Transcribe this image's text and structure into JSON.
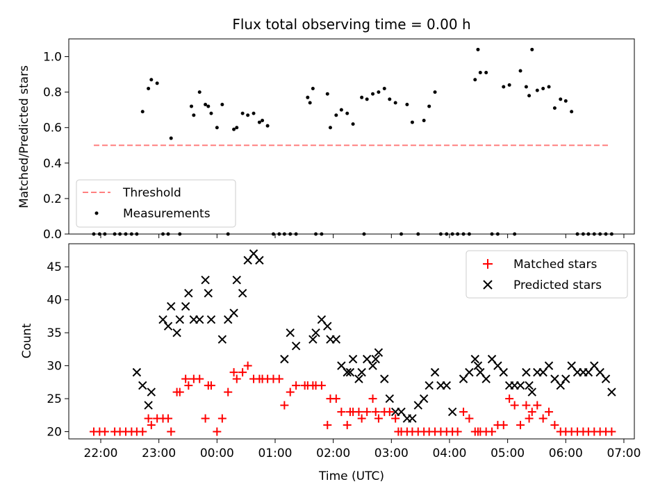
{
  "chart_data": [
    {
      "type": "scatter",
      "title": "Flux total observing time = 0.00 h",
      "xlabel": "",
      "ylabel": "Matched/Predicted stars",
      "xlim": [
        -0.55,
        9.18
      ],
      "ylim": [
        0.0,
        1.1
      ],
      "yticks": [
        0.0,
        0.2,
        0.4,
        0.6,
        0.8,
        1.0
      ],
      "ytick_labels": [
        "0.0",
        "0.2",
        "0.4",
        "0.6",
        "0.8",
        "1.0"
      ],
      "xticks": [
        0,
        1,
        2,
        3,
        4,
        5,
        6,
        7,
        8,
        9
      ],
      "legend_position": "lower-left",
      "series": [
        {
          "name": "Threshold",
          "style": "dashed-line",
          "color": "#ff7f7f",
          "x": [
            -0.12,
            8.77
          ],
          "y": [
            0.5,
            0.5
          ]
        },
        {
          "name": "Measurements",
          "style": "dot",
          "color": "#000000",
          "x": [
            -0.12,
            -0.02,
            0.07,
            0.24,
            0.33,
            0.43,
            0.53,
            0.62,
            0.72,
            0.82,
            0.87,
            0.97,
            1.07,
            1.16,
            1.21,
            1.36,
            1.56,
            1.6,
            1.7,
            1.8,
            1.85,
            1.9,
            2.0,
            2.09,
            2.19,
            2.29,
            2.34,
            2.44,
            2.53,
            2.63,
            2.73,
            2.78,
            2.87,
            2.97,
            3.07,
            3.16,
            3.26,
            3.36,
            3.56,
            3.6,
            3.65,
            3.7,
            3.8,
            3.9,
            3.95,
            4.05,
            4.14,
            4.24,
            4.34,
            4.49,
            4.53,
            4.58,
            4.68,
            4.78,
            4.88,
            4.97,
            5.07,
            5.17,
            5.27,
            5.36,
            5.46,
            5.56,
            5.65,
            5.75,
            5.85,
            5.95,
            6.05,
            6.14,
            6.24,
            6.34,
            6.44,
            6.49,
            6.53,
            6.63,
            6.73,
            6.83,
            6.93,
            7.03,
            7.12,
            7.22,
            7.32,
            7.37,
            7.42,
            7.51,
            7.61,
            7.71,
            7.81,
            7.91,
            8.0,
            8.1,
            8.2,
            8.3,
            8.39,
            8.49,
            8.59,
            8.69,
            8.79
          ],
          "y": [
            0.0,
            0.0,
            0.0,
            0.0,
            0.0,
            0.0,
            0.0,
            0.0,
            0.69,
            0.82,
            0.87,
            0.85,
            0.0,
            0.0,
            0.54,
            0.0,
            0.72,
            0.67,
            0.8,
            0.73,
            0.72,
            0.68,
            0.6,
            0.73,
            0.0,
            0.59,
            0.6,
            0.68,
            0.67,
            0.68,
            0.63,
            0.64,
            0.61,
            0.0,
            0.0,
            0.0,
            0.0,
            0.0,
            0.77,
            0.74,
            0.82,
            0.0,
            0.0,
            0.79,
            0.6,
            0.67,
            0.7,
            0.68,
            0.62,
            0.77,
            0.0,
            0.76,
            0.79,
            0.8,
            0.82,
            0.76,
            0.74,
            0.0,
            0.73,
            0.63,
            0.0,
            0.64,
            0.72,
            0.8,
            0.0,
            0.0,
            0.0,
            0.0,
            0.0,
            0.0,
            0.87,
            1.04,
            0.91,
            0.91,
            0.0,
            0.0,
            0.83,
            0.84,
            0.0,
            0.92,
            0.83,
            0.78,
            1.04,
            0.81,
            0.82,
            0.83,
            0.71,
            0.76,
            0.75,
            0.69,
            0.0,
            0.0,
            0.0,
            0.0,
            0.0,
            0.0,
            0.0
          ]
        }
      ]
    },
    {
      "type": "scatter",
      "title": "",
      "xlabel": "Time (UTC)",
      "ylabel": "Count",
      "xlim": [
        -0.55,
        9.18
      ],
      "ylim": [
        18.9,
        48.5
      ],
      "yticks": [
        20,
        25,
        30,
        35,
        40,
        45
      ],
      "ytick_labels": [
        "20",
        "25",
        "30",
        "35",
        "40",
        "45"
      ],
      "xticks": [
        0,
        1,
        2,
        3,
        4,
        5,
        6,
        7,
        8,
        9
      ],
      "xtick_labels": [
        "22:00",
        "23:00",
        "00:00",
        "01:00",
        "02:00",
        "03:00",
        "04:00",
        "05:00",
        "06:00",
        "07:00"
      ],
      "legend_position": "upper-right",
      "series": [
        {
          "name": "Matched stars",
          "marker": "plus",
          "color": "#ff0000",
          "x": [
            -0.12,
            -0.02,
            0.07,
            0.24,
            0.33,
            0.43,
            0.53,
            0.62,
            0.72,
            0.82,
            0.87,
            0.97,
            1.07,
            1.16,
            1.21,
            1.31,
            1.36,
            1.46,
            1.51,
            1.6,
            1.7,
            1.8,
            1.85,
            1.9,
            2.0,
            2.09,
            2.19,
            2.29,
            2.34,
            2.44,
            2.53,
            2.63,
            2.73,
            2.78,
            2.87,
            2.97,
            3.07,
            3.16,
            3.26,
            3.36,
            3.51,
            3.56,
            3.65,
            3.7,
            3.8,
            3.9,
            3.95,
            4.05,
            4.14,
            4.24,
            4.29,
            4.34,
            4.44,
            4.49,
            4.58,
            4.68,
            4.73,
            4.78,
            4.88,
            4.97,
            5.07,
            5.12,
            5.17,
            5.27,
            5.36,
            5.46,
            5.56,
            5.65,
            5.75,
            5.85,
            5.95,
            6.05,
            6.14,
            6.24,
            6.34,
            6.44,
            6.49,
            6.53,
            6.63,
            6.73,
            6.83,
            6.93,
            7.03,
            7.12,
            7.22,
            7.32,
            7.37,
            7.42,
            7.51,
            7.61,
            7.71,
            7.81,
            7.91,
            8.0,
            8.1,
            8.2,
            8.3,
            8.39,
            8.49,
            8.59,
            8.69,
            8.79
          ],
          "y": [
            20,
            20,
            20,
            20,
            20,
            20,
            20,
            20,
            20,
            22,
            21,
            22,
            22,
            22,
            20,
            26,
            26,
            28,
            27,
            28,
            28,
            22,
            27,
            27,
            20,
            22,
            26,
            29,
            28,
            29,
            30,
            28,
            28,
            28,
            28,
            28,
            28,
            24,
            26,
            27,
            27,
            27,
            27,
            27,
            27,
            21,
            25,
            25,
            23,
            21,
            23,
            23,
            23,
            22,
            23,
            25,
            23,
            22,
            23,
            23,
            22,
            20,
            20,
            20,
            20,
            20,
            20,
            20,
            20,
            20,
            20,
            20,
            20,
            23,
            22,
            20,
            20,
            20,
            20,
            20,
            21,
            21,
            25,
            24,
            21,
            24,
            22,
            23,
            24,
            22,
            23,
            21,
            20,
            20,
            20,
            20,
            20,
            20,
            20,
            20,
            20,
            20
          ]
        },
        {
          "name": "Predicted stars",
          "marker": "cross",
          "color": "#000000",
          "x": [
            0.62,
            0.72,
            0.82,
            0.87,
            1.07,
            1.16,
            1.21,
            1.31,
            1.36,
            1.46,
            1.51,
            1.6,
            1.7,
            1.8,
            1.85,
            1.9,
            2.09,
            2.19,
            2.29,
            2.34,
            2.44,
            2.53,
            2.63,
            2.73,
            3.16,
            3.26,
            3.36,
            3.65,
            3.7,
            3.8,
            3.9,
            3.95,
            4.05,
            4.14,
            4.24,
            4.29,
            4.34,
            4.44,
            4.49,
            4.58,
            4.68,
            4.73,
            4.78,
            4.88,
            4.97,
            5.07,
            5.17,
            5.27,
            5.36,
            5.46,
            5.56,
            5.65,
            5.75,
            5.85,
            5.95,
            6.05,
            6.24,
            6.34,
            6.44,
            6.49,
            6.53,
            6.63,
            6.73,
            6.83,
            6.93,
            7.03,
            7.12,
            7.22,
            7.32,
            7.37,
            7.42,
            7.51,
            7.61,
            7.71,
            7.81,
            7.91,
            8.0,
            8.1,
            8.2,
            8.3,
            8.39,
            8.49,
            8.59,
            8.69,
            8.79
          ],
          "y": [
            29,
            27,
            24,
            26,
            37,
            36,
            39,
            35,
            37,
            39,
            41,
            37,
            37,
            43,
            41,
            37,
            34,
            37,
            38,
            43,
            41,
            46,
            47,
            46,
            31,
            35,
            33,
            34,
            35,
            37,
            36,
            34,
            34,
            30,
            29,
            29,
            31,
            28,
            29,
            31,
            30,
            31,
            32,
            28,
            25,
            23,
            23,
            22,
            22,
            24,
            25,
            27,
            29,
            27,
            27,
            23,
            28,
            29,
            31,
            30,
            29,
            28,
            31,
            30,
            29,
            27,
            27,
            27,
            29,
            27,
            26,
            29,
            29,
            30,
            28,
            27,
            28,
            30,
            29,
            29,
            29,
            30,
            29,
            28,
            26
          ]
        }
      ]
    }
  ]
}
